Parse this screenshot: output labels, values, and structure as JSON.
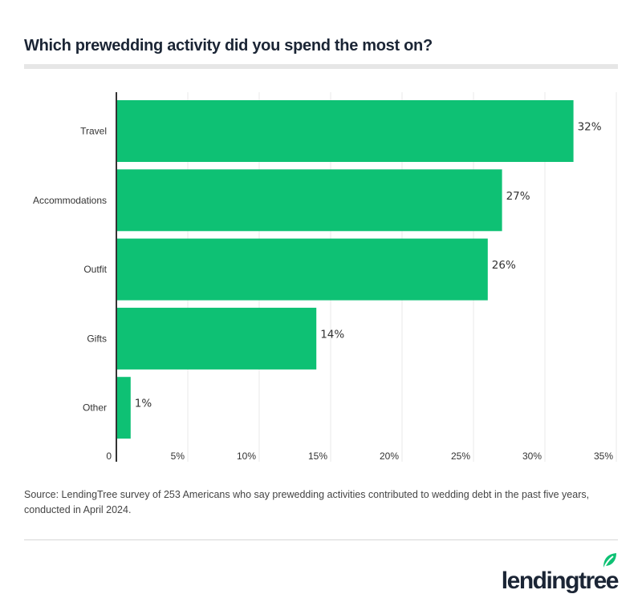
{
  "chart_data": {
    "type": "bar",
    "orientation": "horizontal",
    "title": "Which prewedding activity did you spend the most on?",
    "categories": [
      "Travel",
      "Accommodations",
      "Outfit",
      "Gifts",
      "Other"
    ],
    "values": [
      32,
      27,
      26,
      14,
      1
    ],
    "data_labels": [
      "32%",
      "27%",
      "26%",
      "14%",
      "1%"
    ],
    "xlim": [
      0,
      35
    ],
    "x_ticks": [
      0,
      5,
      10,
      15,
      20,
      25,
      30,
      35
    ],
    "x_tick_labels": [
      "0",
      "5%",
      "10%",
      "15%",
      "20%",
      "25%",
      "30%",
      "35%"
    ],
    "grid": true,
    "bar_color": "#0ec174",
    "xlabel": "",
    "ylabel": ""
  },
  "source": "Source: LendingTree survey of 253 Americans who say prewedding activities contributed to wedding debt in the past five years, conducted in April 2024.",
  "brand": {
    "name": "lendingtree",
    "color": "#0ec174",
    "text_color": "#1b2535"
  }
}
